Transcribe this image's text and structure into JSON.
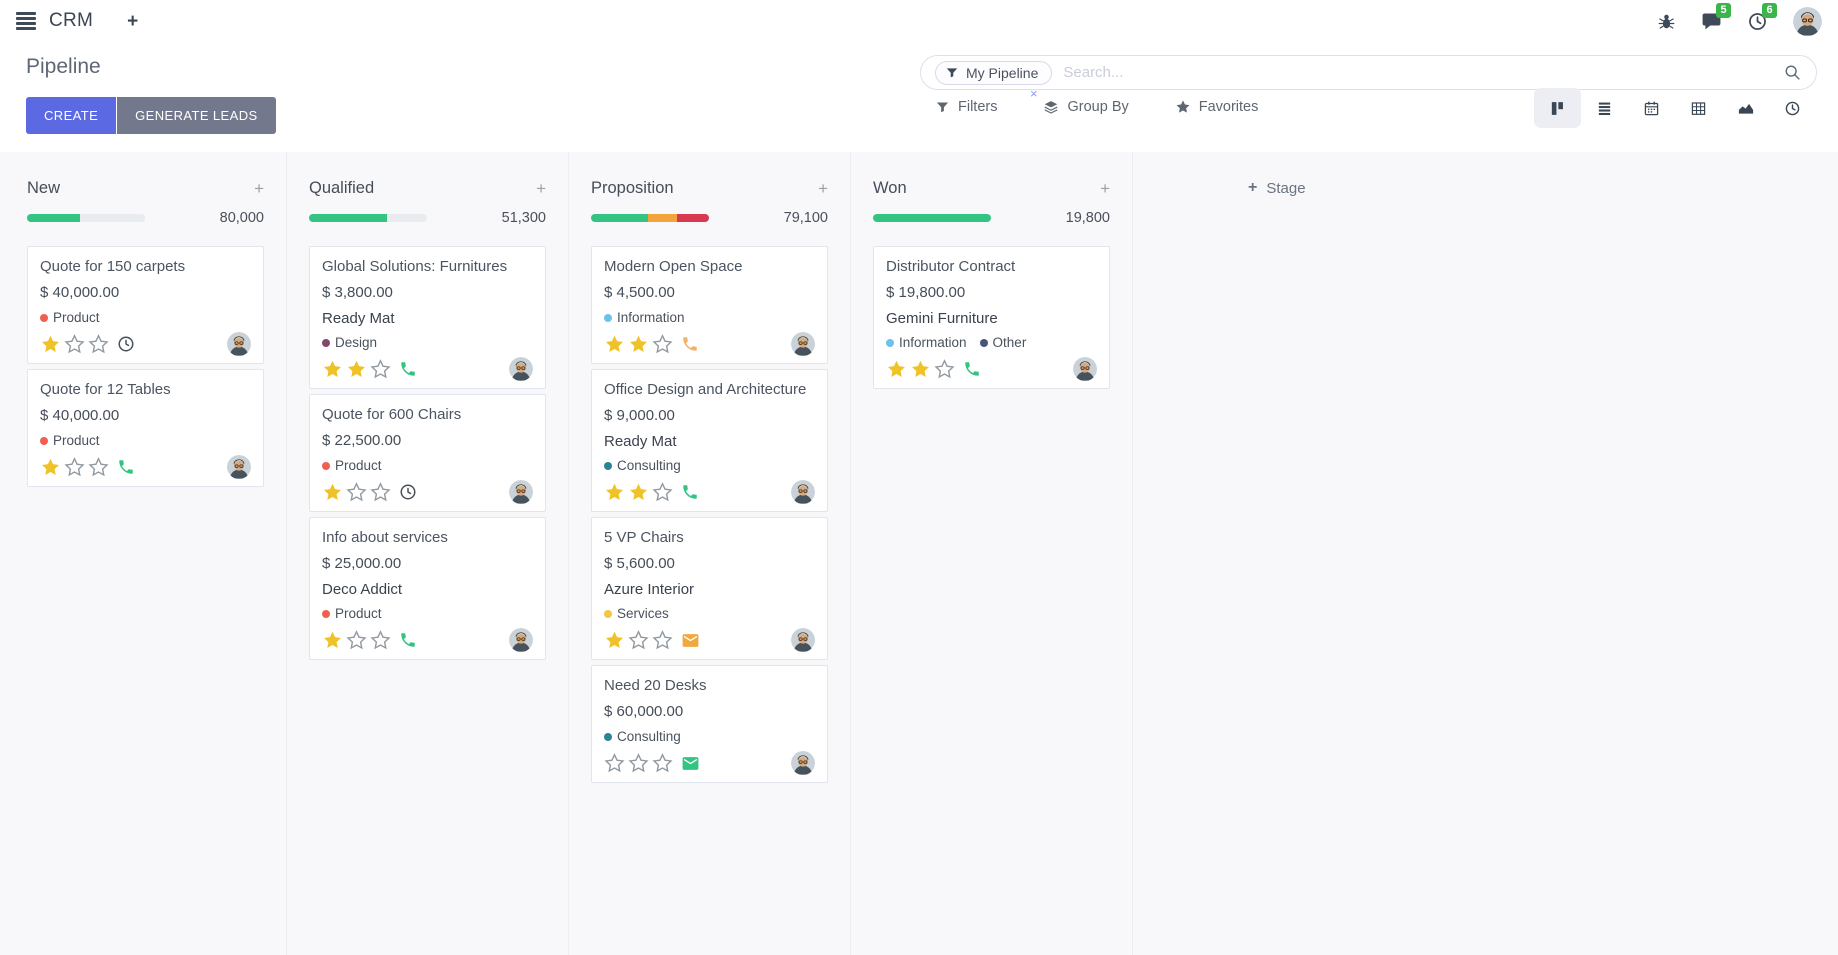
{
  "theme": {
    "primary": "#5b69e2",
    "secondary": "#74788d",
    "badge_green": "#3bb54a",
    "board_bg": "#f8f8fb",
    "progress_green": "#33c483",
    "progress_orange": "#f2a53c",
    "progress_red": "#d63950",
    "progress_muted": "#e9ecef",
    "star_gold": "#efc228",
    "star_empty_stroke": "#9098a0"
  },
  "topbar": {
    "app_name": "CRM",
    "new_tab_label": "+",
    "icons": [
      "hamburger-icon",
      "bug-icon",
      "messages-icon",
      "activities-icon",
      "avatar"
    ],
    "messages_badge": "5",
    "activities_badge": "6"
  },
  "control_panel": {
    "title": "Pipeline",
    "create_label": "CREATE",
    "generate_leads_label": "GENERATE LEADS",
    "search": {
      "facet_label": "My Pipeline",
      "facet_icon": "filter-funnel-icon",
      "remove_glyph": "×",
      "placeholder": "Search...",
      "submit_icon": "search-icon"
    },
    "filters_label": "Filters",
    "group_by_label": "Group By",
    "favorites_label": "Favorites",
    "view_switcher": [
      "kanban",
      "list",
      "calendar",
      "pivot",
      "graph",
      "activity"
    ],
    "active_view": "kanban"
  },
  "board": {
    "add_stage_label": "Stage",
    "add_stage_glyph": "+",
    "add_card_glyph": "+",
    "columns": [
      {
        "name": "New",
        "total": "80,000",
        "progress": [
          {
            "color": "#33c483",
            "pct": 45
          },
          {
            "color": "#e9ecef",
            "pct": 55
          }
        ],
        "cards": [
          {
            "title": "Quote for 150 carpets",
            "amount": "$ 40,000.00",
            "partner": "",
            "tags": [
              {
                "label": "Product",
                "color": "#f06050"
              }
            ],
            "stars": 1,
            "activity": "clock",
            "activity_color": "#495057"
          },
          {
            "title": "Quote for 12 Tables",
            "amount": "$ 40,000.00",
            "partner": "",
            "tags": [
              {
                "label": "Product",
                "color": "#f06050"
              }
            ],
            "stars": 1,
            "activity": "phone",
            "activity_color": "#33c483"
          }
        ]
      },
      {
        "name": "Qualified",
        "total": "51,300",
        "progress": [
          {
            "color": "#33c483",
            "pct": 66
          },
          {
            "color": "#e9ecef",
            "pct": 34
          }
        ],
        "cards": [
          {
            "title": "Global Solutions: Furnitures",
            "amount": "$ 3,800.00",
            "partner": "Ready Mat",
            "tags": [
              {
                "label": "Design",
                "color": "#814968"
              }
            ],
            "stars": 2,
            "activity": "phone",
            "activity_color": "#33c483"
          },
          {
            "title": "Quote for 600 Chairs",
            "amount": "$ 22,500.00",
            "partner": "",
            "tags": [
              {
                "label": "Product",
                "color": "#f06050"
              }
            ],
            "stars": 1,
            "activity": "clock",
            "activity_color": "#495057"
          },
          {
            "title": "Info about services",
            "amount": "$ 25,000.00",
            "partner": "Deco Addict",
            "tags": [
              {
                "label": "Product",
                "color": "#f06050"
              }
            ],
            "stars": 1,
            "activity": "phone",
            "activity_color": "#33c483"
          }
        ]
      },
      {
        "name": "Proposition",
        "total": "79,100",
        "progress": [
          {
            "color": "#33c483",
            "pct": 48
          },
          {
            "color": "#f2a53c",
            "pct": 25
          },
          {
            "color": "#d63950",
            "pct": 27
          }
        ],
        "cards": [
          {
            "title": "Modern Open Space",
            "amount": "$ 4,500.00",
            "partner": "",
            "tags": [
              {
                "label": "Information",
                "color": "#6cc1ed"
              }
            ],
            "stars": 2,
            "activity": "phone",
            "activity_color": "#f5b06a"
          },
          {
            "title": "Office Design and Architecture",
            "amount": "$ 9,000.00",
            "partner": "Ready Mat",
            "tags": [
              {
                "label": "Consulting",
                "color": "#2c8397"
              }
            ],
            "stars": 2,
            "activity": "phone",
            "activity_color": "#33c483"
          },
          {
            "title": "5 VP Chairs",
            "amount": "$ 5,600.00",
            "partner": "Azure Interior",
            "tags": [
              {
                "label": "Services",
                "color": "#f0c747"
              }
            ],
            "stars": 1,
            "activity": "envelope",
            "activity_color": "#f0a93f"
          },
          {
            "title": "Need 20 Desks",
            "amount": "$ 60,000.00",
            "partner": "",
            "tags": [
              {
                "label": "Consulting",
                "color": "#2c8397"
              }
            ],
            "stars": 0,
            "activity": "envelope",
            "activity_color": "#33c483"
          }
        ]
      },
      {
        "name": "Won",
        "total": "19,800",
        "progress": [
          {
            "color": "#33c483",
            "pct": 100
          }
        ],
        "cards": [
          {
            "title": "Distributor Contract",
            "amount": "$ 19,800.00",
            "partner": "Gemini Furniture",
            "tags": [
              {
                "label": "Information",
                "color": "#6cc1ed"
              },
              {
                "label": "Other",
                "color": "#475577"
              }
            ],
            "stars": 2,
            "activity": "phone",
            "activity_color": "#33c483"
          }
        ]
      }
    ]
  }
}
